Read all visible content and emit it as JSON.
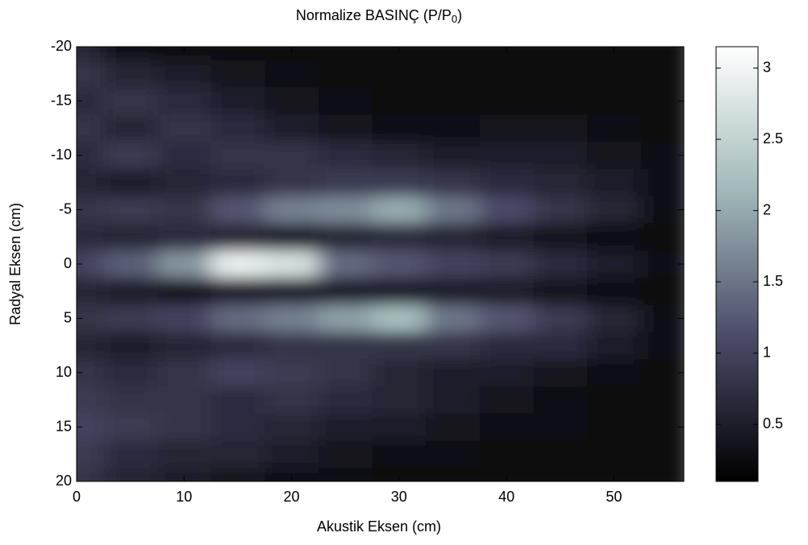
{
  "chart_data": {
    "type": "heatmap",
    "title": [
      "Normalize BASINÇ (P/P",
      "0",
      ")"
    ],
    "xlabel": "Akustik Eksen (cm)",
    "ylabel": "Radyal Eksen (cm)",
    "x": [
      0,
      5,
      10,
      15,
      20,
      25,
      30,
      35,
      40,
      45,
      50,
      55
    ],
    "y": [
      -20,
      -17.5,
      -15,
      -12.5,
      -10,
      -7.5,
      -5,
      -2.5,
      0,
      2.5,
      5,
      7.5,
      10,
      12.5,
      15,
      17.5,
      20
    ],
    "z": [
      [
        0.6,
        0.3,
        0.2,
        0.2,
        0.2,
        0.2,
        0.2,
        0.2,
        0.2,
        0.2,
        0.2,
        0.2
      ],
      [
        0.8,
        0.6,
        0.5,
        0.4,
        0.3,
        0.2,
        0.2,
        0.2,
        0.2,
        0.2,
        0.2,
        0.2
      ],
      [
        0.7,
        0.8,
        0.7,
        0.5,
        0.4,
        0.3,
        0.2,
        0.2,
        0.2,
        0.2,
        0.2,
        0.2
      ],
      [
        0.8,
        0.6,
        0.8,
        0.7,
        0.5,
        0.4,
        0.3,
        0.3,
        0.4,
        0.4,
        0.3,
        0.2
      ],
      [
        0.7,
        0.9,
        0.7,
        0.8,
        0.8,
        0.7,
        0.6,
        0.5,
        0.5,
        0.5,
        0.4,
        0.3
      ],
      [
        0.6,
        0.5,
        0.6,
        0.7,
        0.8,
        0.9,
        0.9,
        0.8,
        0.7,
        0.6,
        0.5,
        0.3
      ],
      [
        0.8,
        0.9,
        0.8,
        1.2,
        1.6,
        1.7,
        2.0,
        1.5,
        1.1,
        0.8,
        0.6,
        0.3
      ],
      [
        0.7,
        0.6,
        0.7,
        0.6,
        0.5,
        0.6,
        0.7,
        0.6,
        0.5,
        0.4,
        0.3,
        0.2
      ],
      [
        1.0,
        1.3,
        1.8,
        2.9,
        2.7,
        1.4,
        1.2,
        1.0,
        0.9,
        0.7,
        0.5,
        0.3
      ],
      [
        0.6,
        0.5,
        0.4,
        0.5,
        0.5,
        0.5,
        0.5,
        0.5,
        0.5,
        0.4,
        0.3,
        0.2
      ],
      [
        0.8,
        0.9,
        1.0,
        1.4,
        1.6,
        1.9,
        2.2,
        1.5,
        1.2,
        0.9,
        0.6,
        0.3
      ],
      [
        0.6,
        0.5,
        0.6,
        0.7,
        0.8,
        0.8,
        0.8,
        0.8,
        0.7,
        0.7,
        0.5,
        0.3
      ],
      [
        0.8,
        0.7,
        0.8,
        1.0,
        0.9,
        0.8,
        0.6,
        0.5,
        0.5,
        0.4,
        0.3,
        0.2
      ],
      [
        0.9,
        0.8,
        0.8,
        0.7,
        0.8,
        0.7,
        0.6,
        0.5,
        0.4,
        0.3,
        0.2,
        0.2
      ],
      [
        1.0,
        0.9,
        0.8,
        0.7,
        0.6,
        0.5,
        0.5,
        0.4,
        0.3,
        0.3,
        0.2,
        0.2
      ],
      [
        0.9,
        0.7,
        0.6,
        0.6,
        0.5,
        0.4,
        0.3,
        0.3,
        0.2,
        0.2,
        0.2,
        0.2
      ],
      [
        0.8,
        0.6,
        0.5,
        0.4,
        0.3,
        0.3,
        0.2,
        0.2,
        0.2,
        0.2,
        0.2,
        0.2
      ]
    ],
    "xlim": [
      0,
      56.5
    ],
    "xticks": [
      0,
      10,
      20,
      30,
      40,
      50
    ],
    "ylim": [
      -20,
      20
    ],
    "y_reversed": true,
    "yticks": [
      -20,
      -15,
      -10,
      -5,
      0,
      5,
      10,
      15,
      20
    ],
    "clim": [
      0.1,
      3.15
    ],
    "cticks": [
      0.5,
      1,
      1.5,
      2,
      2.5,
      3
    ],
    "colormap": [
      "#000000",
      "#4b4b6a",
      "#a0b8b8",
      "#ffffff"
    ],
    "colorbar": true
  }
}
